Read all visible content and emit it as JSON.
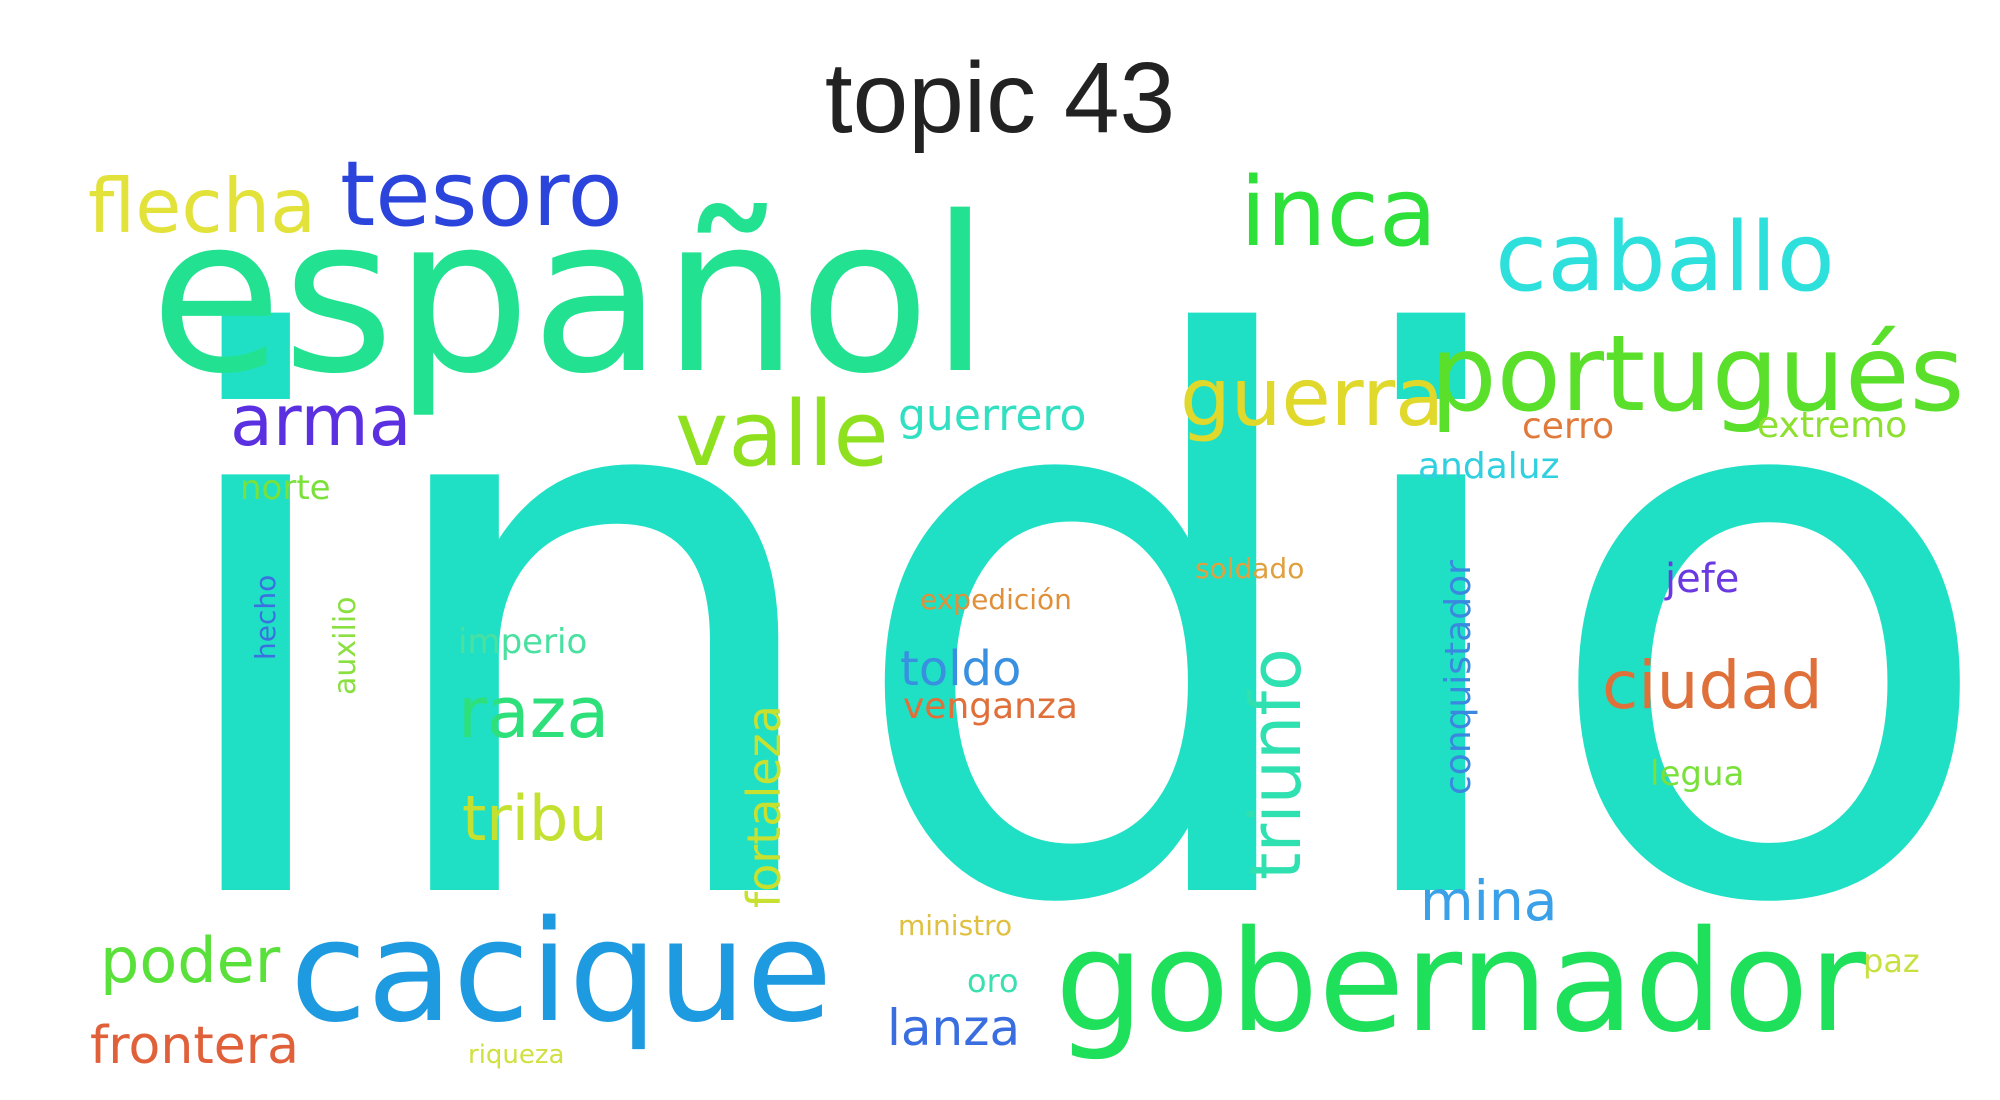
{
  "title": "topic 43",
  "words": [
    {
      "text": "indio",
      "color": "#1fe0c4",
      "weight": 1.0
    },
    {
      "text": "español",
      "color": "#22e292",
      "weight": 0.55
    },
    {
      "text": "gobernador",
      "color": "#1ee05a",
      "weight": 0.35
    },
    {
      "text": "cacique",
      "color": "#1e9be0",
      "weight": 0.34
    },
    {
      "text": "portugués",
      "color": "#5ae02a",
      "weight": 0.27
    },
    {
      "text": "caballo",
      "color": "#2ee0dc",
      "weight": 0.22
    },
    {
      "text": "inca",
      "color": "#2ee03a",
      "weight": 0.21
    },
    {
      "text": "valle",
      "color": "#8fe01e",
      "weight": 0.2
    },
    {
      "text": "tesoro",
      "color": "#2a44dc",
      "weight": 0.19
    },
    {
      "text": "guerra",
      "color": "#e0d82a",
      "weight": 0.17
    },
    {
      "text": "flecha",
      "color": "#e2e23a",
      "weight": 0.16
    },
    {
      "text": "arma",
      "color": "#5a30e0",
      "weight": 0.15
    },
    {
      "text": "triunfo",
      "color": "#2fe0b0",
      "weight": 0.15
    },
    {
      "text": "raza",
      "color": "#2ee07a",
      "weight": 0.15
    },
    {
      "text": "ciudad",
      "color": "#e0703a",
      "weight": 0.14
    },
    {
      "text": "poder",
      "color": "#5ae03a",
      "weight": 0.13
    },
    {
      "text": "tribu",
      "color": "#c4e030",
      "weight": 0.13
    },
    {
      "text": "mina",
      "color": "#3aa0e8",
      "weight": 0.12
    },
    {
      "text": "frontera",
      "color": "#e0603a",
      "weight": 0.12
    },
    {
      "text": "lanza",
      "color": "#3a6ee0",
      "weight": 0.12
    },
    {
      "text": "toldo",
      "color": "#3a90e0",
      "weight": 0.12
    },
    {
      "text": "fortaleza",
      "color": "#c8e030",
      "weight": 0.11
    },
    {
      "text": "guerrero",
      "color": "#30e0c0",
      "weight": 0.1
    },
    {
      "text": "conquistador",
      "color": "#3a88e0",
      "weight": 0.09
    },
    {
      "text": "venganza",
      "color": "#e0703a",
      "weight": 0.08
    },
    {
      "text": "cerro",
      "color": "#e07a3a",
      "weight": 0.08
    },
    {
      "text": "extremo",
      "color": "#8ee030",
      "weight": 0.08
    },
    {
      "text": "andaluz",
      "color": "#30d0e0",
      "weight": 0.08
    },
    {
      "text": "norte",
      "color": "#7ae03a",
      "weight": 0.07
    },
    {
      "text": "imperio",
      "color": "#4ae0a0",
      "weight": 0.07
    },
    {
      "text": "jefe",
      "color": "#6a3ae0",
      "weight": 0.07
    },
    {
      "text": "legua",
      "color": "#7ae03a",
      "weight": 0.07
    },
    {
      "text": "oro",
      "color": "#3ae0b0",
      "weight": 0.07
    },
    {
      "text": "paz",
      "color": "#c8e040",
      "weight": 0.06
    },
    {
      "text": "auxilio",
      "color": "#8ae040",
      "weight": 0.06
    },
    {
      "text": "hecho",
      "color": "#3a70e0",
      "weight": 0.06
    },
    {
      "text": "soldado",
      "color": "#e0a040",
      "weight": 0.06
    },
    {
      "text": "expedición",
      "color": "#e0903a",
      "weight": 0.06
    },
    {
      "text": "ministro",
      "color": "#e0c040",
      "weight": 0.06
    },
    {
      "text": "riqueza",
      "color": "#d0e040",
      "weight": 0.05
    }
  ]
}
